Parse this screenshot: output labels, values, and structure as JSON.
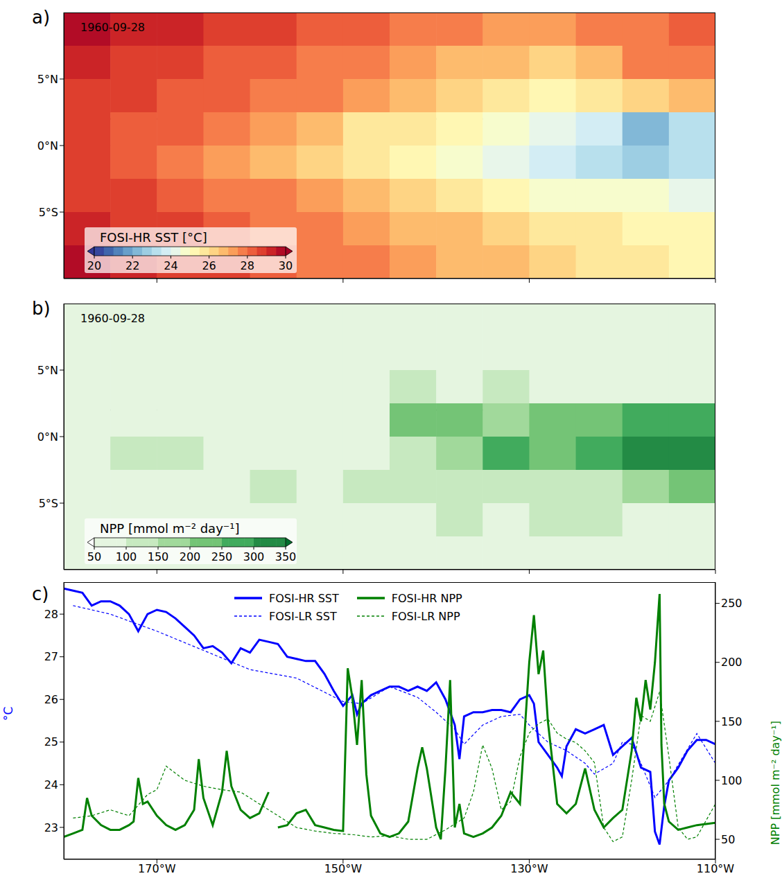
{
  "chart_data": [
    {
      "type": "heatmap",
      "label": "a)",
      "annotation": "1960-09-28",
      "color": "RdYlBu_r",
      "x": [
        -177.5,
        -172.5,
        -167.5,
        -162.5,
        -157.5,
        -152.5,
        -147.5,
        -142.5,
        -137.5,
        -132.5,
        -127.5,
        -122.5,
        -117.5,
        -112.5
      ],
      "y": [
        8.75,
        6.25,
        3.75,
        1.25,
        -1.25,
        -3.75,
        -6.25,
        -8.75
      ],
      "cells": [
        [
          29.5,
          29.3,
          29,
          28.8,
          28.5,
          28.2,
          28,
          27.8,
          27.6,
          27.4,
          27.3,
          27.5,
          27.8,
          28
        ],
        [
          29.2,
          28.8,
          28.5,
          28.2,
          28,
          27.8,
          27.5,
          27,
          26.8,
          26.5,
          26.2,
          26.8,
          27.5,
          27.5
        ],
        [
          28.8,
          28.5,
          28.2,
          28,
          27.8,
          27.5,
          27,
          26.5,
          26,
          25.5,
          25.2,
          25.5,
          26,
          26.5
        ],
        [
          28.5,
          28.2,
          28,
          27.5,
          27,
          26.5,
          25.8,
          25.5,
          25.2,
          24.8,
          24.2,
          23.5,
          22,
          23
        ],
        [
          28.5,
          28.2,
          27.8,
          27.3,
          26.8,
          26.2,
          25.8,
          25.2,
          24.5,
          24,
          23.5,
          23,
          22.5,
          23
        ],
        [
          28.8,
          28.5,
          28,
          27.8,
          27.5,
          27,
          26.5,
          26,
          25.5,
          25,
          24.8,
          24.5,
          24.5,
          24.2
        ],
        [
          29.2,
          28.8,
          28.5,
          28.2,
          27.8,
          27.5,
          27.2,
          26.8,
          26.5,
          26,
          25.8,
          25.5,
          25.2,
          25
        ],
        [
          29.5,
          29.2,
          28.8,
          28.5,
          28.2,
          27.8,
          27.5,
          27.2,
          26.8,
          26.5,
          26.2,
          25.8,
          25.5,
          25.2
        ]
      ],
      "xlim": [
        -180,
        -110
      ],
      "xticks": [
        -170,
        -150,
        -130,
        -110
      ],
      "ylim": [
        -10,
        10
      ],
      "yticks": [
        {
          "value": 5,
          "label": "5°N"
        },
        {
          "value": 0,
          "label": "0°N"
        },
        {
          "value": -5,
          "label": "5°S"
        }
      ],
      "tick_labels": "y",
      "reference_y": 2,
      "colorbar": {
        "label": "FOSI-HR SST [°C]",
        "range": [
          20,
          30
        ],
        "ticks": [
          20,
          22,
          24,
          26,
          28,
          30
        ]
      }
    },
    {
      "type": "heatmap",
      "label": "b)",
      "annotation": "1960-09-28",
      "color": "Greens",
      "x": [
        -177.5,
        -172.5,
        -167.5,
        -162.5,
        -157.5,
        -152.5,
        -147.5,
        -142.5,
        -137.5,
        -132.5,
        -127.5,
        -122.5,
        -117.5,
        -112.5
      ],
      "y": [
        8.75,
        6.25,
        3.75,
        1.25,
        -1.25,
        -3.75,
        -6.25,
        -8.75
      ],
      "cells": [
        [
          60,
          60,
          60,
          60,
          60,
          60,
          60,
          60,
          60,
          60,
          60,
          60,
          60,
          60
        ],
        [
          65,
          65,
          70,
          70,
          75,
          70,
          70,
          75,
          75,
          80,
          75,
          70,
          70,
          70
        ],
        [
          70,
          70,
          75,
          75,
          80,
          80,
          90,
          120,
          90,
          110,
          90,
          95,
          80,
          75
        ],
        [
          80,
          90,
          95,
          85,
          80,
          85,
          90,
          220,
          210,
          180,
          230,
          200,
          260,
          280
        ],
        [
          75,
          100,
          110,
          85,
          80,
          85,
          95,
          120,
          170,
          260,
          200,
          280,
          300,
          320
        ],
        [
          70,
          85,
          90,
          90,
          100,
          95,
          100,
          100,
          120,
          110,
          130,
          120,
          170,
          200
        ],
        [
          65,
          75,
          80,
          80,
          85,
          90,
          80,
          80,
          140,
          90,
          100,
          110,
          95,
          85
        ],
        [
          60,
          65,
          65,
          65,
          70,
          70,
          70,
          70,
          75,
          75,
          75,
          75,
          70,
          70
        ]
      ],
      "xlim": [
        -180,
        -110
      ],
      "xticks": [
        -170,
        -150,
        -130,
        -110
      ],
      "ylim": [
        -10,
        10
      ],
      "yticks": [
        {
          "value": 5,
          "label": "5°N"
        },
        {
          "value": 0,
          "label": "0°N"
        },
        {
          "value": -5,
          "label": "5°S"
        }
      ],
      "tick_labels": "y",
      "reference_y": 2,
      "colorbar": {
        "label": "NPP [mmol m⁻² day⁻¹]",
        "range": [
          50,
          350
        ],
        "ticks": [
          50,
          100,
          150,
          200,
          250,
          300,
          350
        ]
      }
    },
    {
      "type": "line",
      "label": "c)",
      "legend": "top",
      "xlim": [
        -180,
        -110
      ],
      "xticks": [
        {
          "value": -170,
          "label": "170°W"
        },
        {
          "value": -150,
          "label": "150°W"
        },
        {
          "value": -130,
          "label": "130°W"
        },
        {
          "value": -110,
          "label": "110°W"
        }
      ],
      "ylabel": "°C",
      "ylim": [
        22.25,
        28.75
      ],
      "yticks": [
        23,
        24,
        25,
        26,
        27,
        28
      ],
      "y2label": "NPP [mmol m⁻² day⁻¹]",
      "y2lim": [
        33,
        268
      ],
      "y2ticks": [
        50,
        100,
        150,
        200,
        250
      ],
      "series": [
        {
          "name": "FOSI-HR SST",
          "color": "#0000ff",
          "line_style": "solid",
          "axis": "y",
          "x": [
            -180,
            -179,
            -178,
            -177,
            -176,
            -175,
            -174,
            -173,
            -172,
            -171,
            -170,
            -169,
            -168,
            -167,
            -166,
            -165,
            -164,
            -163,
            -162,
            -161,
            -160,
            -159,
            -158,
            -157,
            -156,
            -155,
            -154,
            -153,
            -152,
            -151,
            -150,
            -149,
            -148.5,
            -148,
            -147,
            -146,
            -145,
            -144,
            -143,
            -142,
            -141,
            -140,
            -139,
            -138,
            -137.5,
            -137,
            -136,
            -135,
            -134,
            -133,
            -132,
            -131,
            -130,
            -129.5,
            -129,
            -128,
            -127,
            -126.5,
            -126,
            -125,
            -124,
            -123,
            -122,
            -121,
            -120,
            -119,
            -118,
            -117,
            -116.5,
            -116,
            -115.5,
            -115,
            -114,
            -113,
            -112,
            -111,
            -110
          ],
          "values": [
            28.6,
            28.55,
            28.5,
            28.2,
            28.3,
            28.3,
            28.2,
            28.0,
            27.6,
            28.0,
            28.1,
            28.05,
            27.9,
            27.7,
            27.5,
            27.2,
            27.25,
            27.1,
            26.85,
            27.2,
            27.1,
            27.4,
            27.35,
            27.3,
            27.0,
            26.95,
            26.9,
            26.9,
            26.6,
            26.2,
            25.85,
            26.1,
            25.65,
            25.9,
            26.1,
            26.2,
            26.3,
            26.3,
            26.2,
            26.3,
            26.2,
            26.4,
            26.0,
            25.4,
            24.6,
            25.6,
            25.7,
            25.7,
            25.75,
            25.75,
            25.7,
            26.0,
            26.1,
            25.9,
            25.0,
            24.7,
            24.4,
            24.2,
            24.9,
            25.3,
            25.2,
            25.3,
            25.4,
            24.7,
            24.9,
            25.1,
            24.4,
            24.3,
            22.9,
            22.6,
            23.5,
            24.1,
            24.4,
            24.8,
            25.05,
            25.05,
            24.95
          ]
        },
        {
          "name": "FOSI-LR SST",
          "color": "#0000ff",
          "line_style": "dashed",
          "axis": "y",
          "x": [
            -179,
            -175,
            -170,
            -165,
            -160,
            -155,
            -150,
            -148,
            -145,
            -142,
            -140,
            -138,
            -137,
            -135,
            -133,
            -131,
            -130,
            -128,
            -126,
            -124,
            -123,
            -121,
            -120,
            -119,
            -118,
            -116.5,
            -115,
            -112,
            -110
          ],
          "values": [
            28.2,
            28.0,
            27.6,
            27.15,
            26.7,
            26.5,
            25.95,
            25.9,
            26.3,
            26.05,
            25.7,
            25.3,
            24.95,
            25.4,
            25.6,
            25.65,
            25.4,
            25.0,
            24.8,
            24.5,
            24.25,
            24.5,
            25.0,
            24.95,
            24.5,
            23.7,
            24.1,
            25.2,
            24.5
          ]
        },
        {
          "name": "FOSI-HR NPP",
          "color": "#008000",
          "line_style": "solid",
          "axis": "y2",
          "x": [
            -180,
            -179,
            -178,
            -177.5,
            -177,
            -176,
            -175,
            -174,
            -173,
            -172.5,
            -172,
            -171.5,
            -171,
            -170,
            -169,
            -168,
            -167,
            -166,
            -165.5,
            -165,
            -164,
            -163,
            -162.5,
            -162,
            -161,
            -160,
            -159,
            -158,
            -157.7,
            -157,
            -156,
            -155,
            -154,
            -153,
            -152,
            -151,
            -150,
            -149.5,
            -149,
            -148.5,
            -148,
            -147.5,
            -147,
            -146,
            -145,
            -144,
            -143,
            -142,
            -141.5,
            -141,
            -140,
            -139.5,
            -139,
            -138.5,
            -138,
            -137.5,
            -137,
            -136,
            -135,
            -134,
            -133,
            -132,
            -131,
            -130.5,
            -130,
            -129.5,
            -129,
            -128.5,
            -128,
            -127,
            -126,
            -125,
            -124,
            -123,
            -122,
            -121,
            -120,
            -119,
            -118.5,
            -118,
            -117.5,
            -117,
            -116.5,
            -116,
            -115.8,
            -115.5,
            -115,
            -114,
            -113,
            -112,
            -111,
            -110
          ],
          "values": [
            52,
            55,
            58,
            85,
            70,
            62,
            58,
            58,
            62,
            65,
            102,
            80,
            82,
            70,
            62,
            58,
            62,
            75,
            118,
            85,
            62,
            90,
            125,
            95,
            75,
            68,
            72,
            90,
            null,
            60,
            62,
            72,
            75,
            62,
            60,
            58,
            57,
            195,
            170,
            130,
            185,
            105,
            70,
            55,
            52,
            55,
            65,
            110,
            128,
            110,
            60,
            50,
            110,
            185,
            60,
            80,
            55,
            52,
            55,
            60,
            70,
            90,
            80,
            140,
            200,
            240,
            190,
            210,
            150,
            80,
            72,
            80,
            110,
            75,
            60,
            68,
            75,
            125,
            170,
            150,
            185,
            160,
            200,
            258,
            130,
            80,
            65,
            58,
            60,
            62,
            63,
            64
          ]
        },
        {
          "name": "FOSI-LR NPP",
          "color": "#008000",
          "line_style": "dashed",
          "axis": "y2",
          "x": [
            -179,
            -177,
            -175,
            -173,
            -171,
            -170,
            -169,
            -167,
            -165,
            -163,
            -161,
            -159,
            -157,
            -155,
            -153,
            -151,
            -149,
            -147,
            -145,
            -143,
            -141,
            -139,
            -137,
            -136,
            -135,
            -134,
            -133,
            -132,
            -131,
            -130,
            -129,
            -128,
            -127,
            -126,
            -125,
            -124,
            -123,
            -122,
            -121,
            -120,
            -119,
            -118,
            -117,
            -116,
            -115,
            -114,
            -113,
            -112,
            -110
          ],
          "values": [
            68,
            70,
            75,
            70,
            88,
            92,
            112,
            100,
            95,
            92,
            90,
            80,
            70,
            60,
            57,
            55,
            54,
            52,
            53,
            50,
            50,
            58,
            68,
            90,
            130,
            110,
            75,
            82,
            120,
            140,
            148,
            152,
            140,
            135,
            132,
            125,
            115,
            60,
            48,
            52,
            100,
            155,
            150,
            175,
            120,
            60,
            50,
            52,
            80
          ]
        }
      ]
    }
  ]
}
